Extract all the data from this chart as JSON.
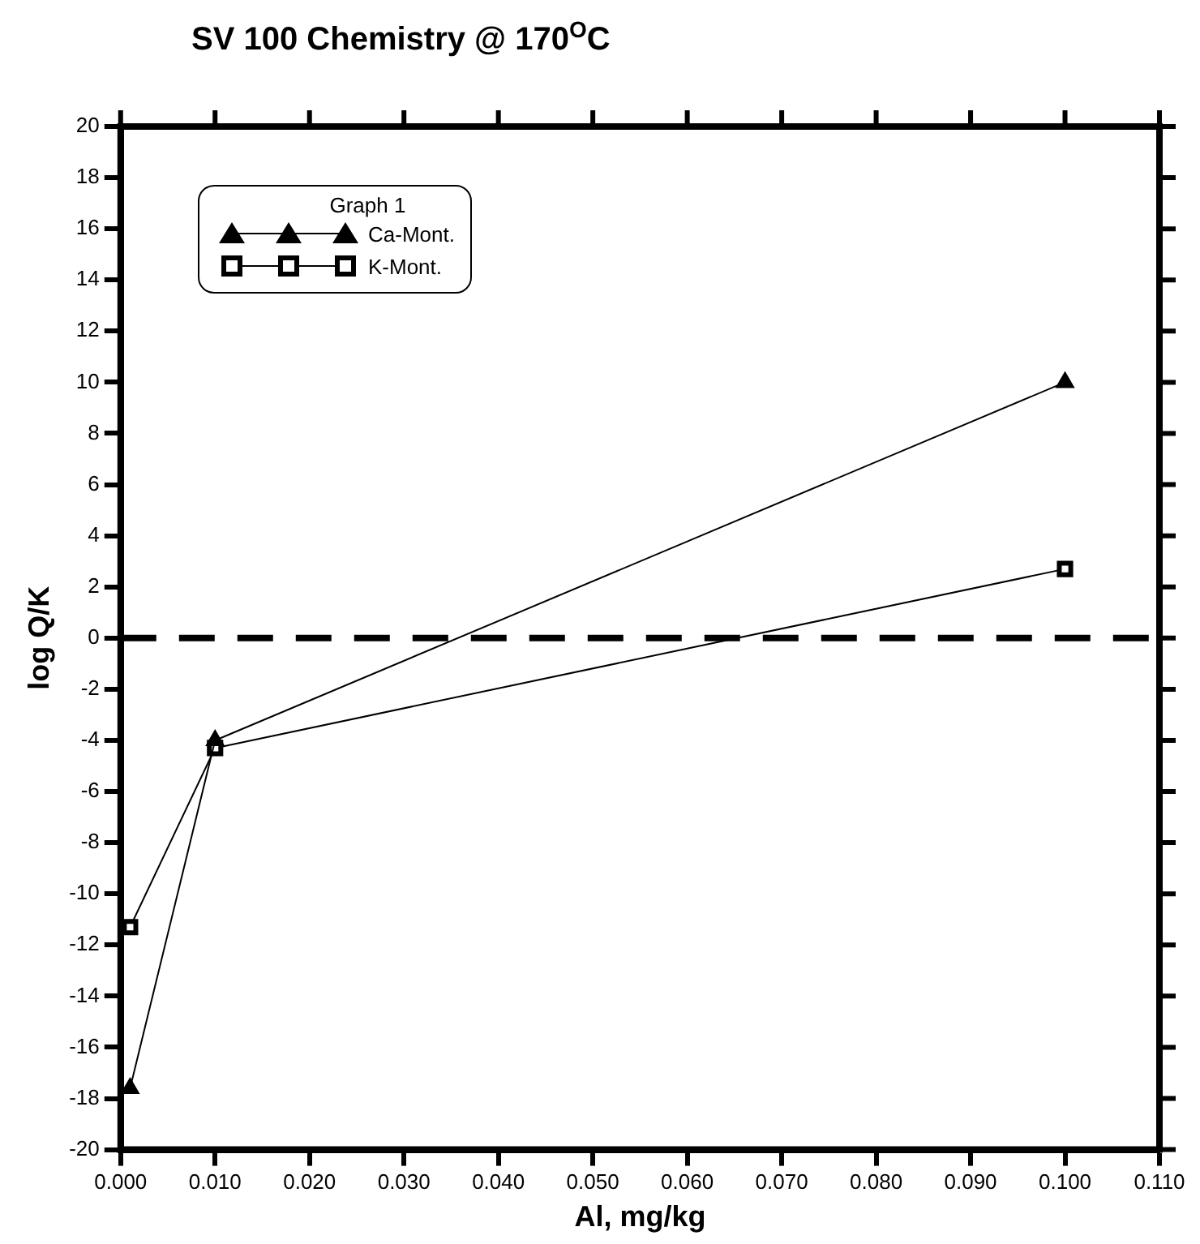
{
  "chart_data": {
    "type": "line",
    "title": "SV 100 Chemistry @ 170$^{O}$C",
    "xlabel": "Al, mg/kg",
    "ylabel": "log Q/K",
    "legend_title": "Graph 1",
    "legend": "top left",
    "grid": false,
    "x": [
      0.001,
      0.01,
      0.1
    ],
    "series": [
      {
        "name": "Ca-Mont.",
        "color": "#000000",
        "marker": "triangle",
        "values": [
          -17.6,
          -4.0,
          10.0
        ]
      },
      {
        "name": "K-Mont.",
        "color": "#000000",
        "marker": "square",
        "values": [
          -11.3,
          -4.3,
          2.7
        ]
      }
    ],
    "xlim": [
      0,
      0.11
    ],
    "xticks": [
      {
        "value": 0,
        "label": "0.000"
      },
      {
        "value": 0.01,
        "label": "0.010"
      },
      {
        "value": 0.02,
        "label": "0.020"
      },
      {
        "value": 0.03,
        "label": "0.030"
      },
      {
        "value": 0.04,
        "label": "0.040"
      },
      {
        "value": 0.05,
        "label": "0.050"
      },
      {
        "value": 0.06,
        "label": "0.060"
      },
      {
        "value": 0.07,
        "label": "0.070"
      },
      {
        "value": 0.08,
        "label": "0.080"
      },
      {
        "value": 0.09,
        "label": "0.090"
      },
      {
        "value": 0.1,
        "label": "0.100"
      },
      {
        "value": 0.11,
        "label": "0.110"
      }
    ],
    "ylim": [
      -20,
      20
    ],
    "yticks": [
      -20,
      -18,
      -16,
      -14,
      -12,
      -10,
      -8,
      -6,
      -4,
      -2,
      0,
      2,
      4,
      6,
      8,
      10,
      12,
      14,
      16,
      18,
      20
    ],
    "ref_lines": [
      {
        "axis": "y",
        "value": 0,
        "color": "#000000",
        "line_style": "dashed"
      }
    ]
  }
}
